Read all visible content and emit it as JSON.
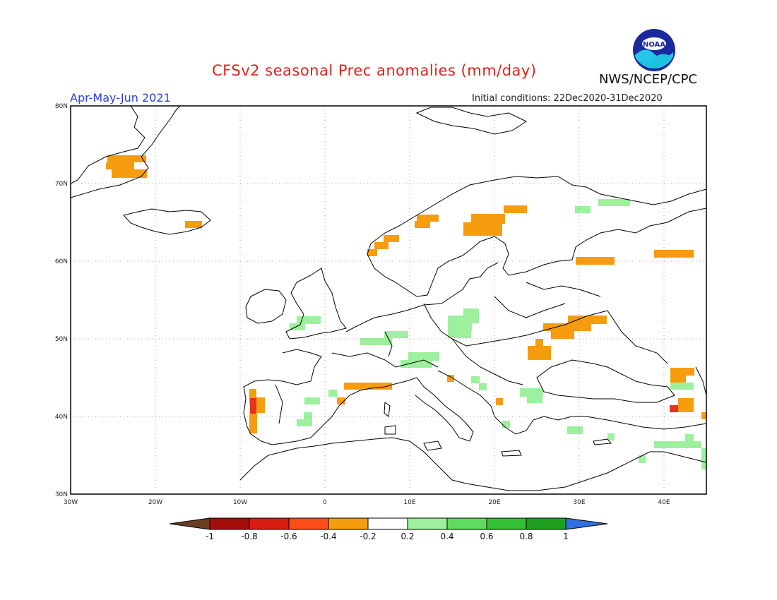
{
  "title": "CFSv2 seasonal Prec anomalies (mm/day)",
  "period": "Apr-May-Jun 2021",
  "initial_conditions": "Initial conditions: 22Dec2020-31Dec2020",
  "agency": "NWS/NCEP/CPC",
  "logo_text": "NOAA",
  "map": {
    "lat_ticks": [
      "80N",
      "70N",
      "60N",
      "50N",
      "40N",
      "30N"
    ],
    "lon_ticks": [
      "30W",
      "20W",
      "10W",
      "0",
      "10E",
      "20E",
      "30E",
      "40E"
    ],
    "grid": true
  },
  "colorbar": {
    "labels": [
      "-1",
      "-0.8",
      "-0.6",
      "-0.4",
      "-0.2",
      "0.2",
      "0.4",
      "0.6",
      "0.8",
      "1"
    ],
    "colors": [
      "#6b3d22",
      "#a50d0d",
      "#d81c10",
      "#ff4d1a",
      "#f59d0f",
      "#ffffff",
      "#9df09d",
      "#5edc5e",
      "#35c135",
      "#1e9f1e",
      "#2f6fe0"
    ]
  },
  "anomaly_colors": {
    "orange": "#f59d0f",
    "red": "#e8331a",
    "light_green": "#9df09d"
  }
}
